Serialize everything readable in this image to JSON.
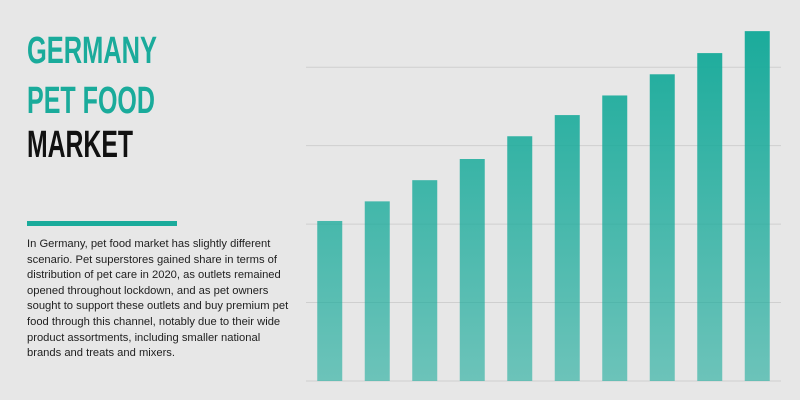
{
  "title": [
    "GERMANY",
    "PET FOOD",
    "MARKET"
  ],
  "description": "In Germany, pet food market has slightly different scenario. Pet superstores gained share in terms of distribution of pet care in 2020, as outlets remained opened throughout lockdown, and as pet owners sought to support these outlets and buy premium pet food through this channel, notably due to their wide product assortments, including smaller national brands and treats and mixers.",
  "chart_data": {
    "type": "bar",
    "categories": [
      null,
      null,
      null,
      null,
      null,
      null,
      null,
      null,
      null,
      null
    ],
    "values": [
      2.04,
      2.29,
      2.56,
      2.83,
      3.12,
      3.39,
      3.64,
      3.91,
      4.18,
      4.46
    ],
    "color": "#1aab9b",
    "ylim": [
      0,
      4.5
    ],
    "yticks": [
      0,
      1,
      2,
      3,
      4
    ],
    "grid": true
  }
}
